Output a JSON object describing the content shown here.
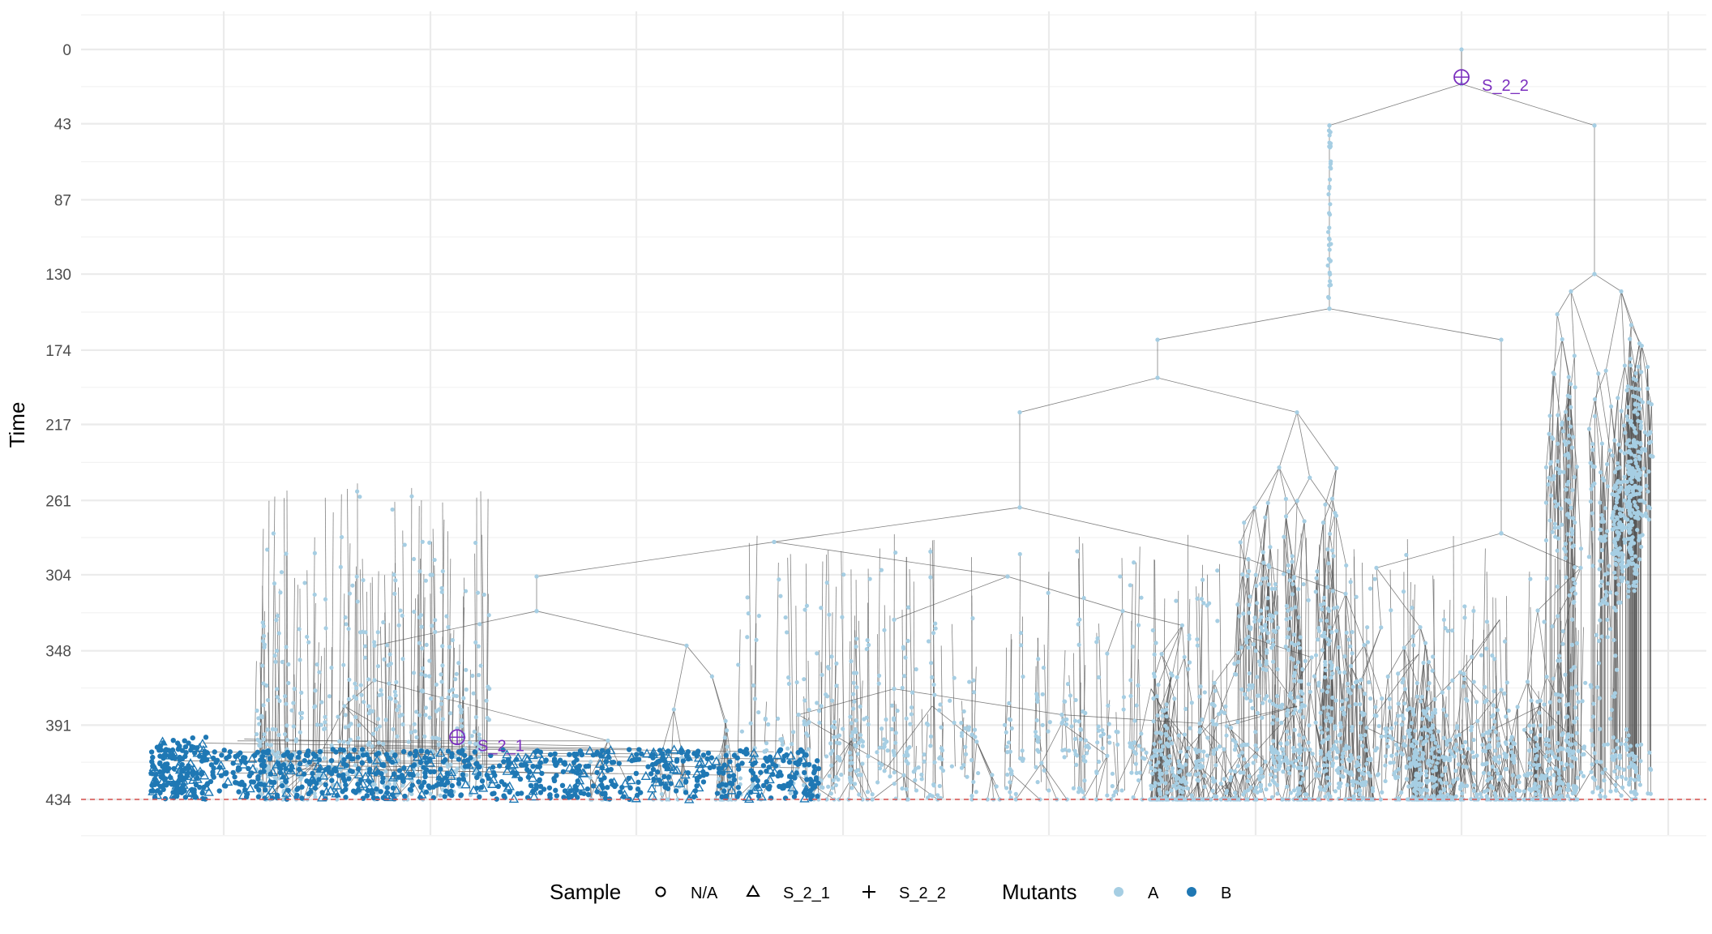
{
  "chart_data": {
    "type": "scatter",
    "subtype": "phylogenetic tree (vertical, time increasing downward)",
    "title": "",
    "xlabel": "",
    "ylabel": "Time",
    "y_reversed": true,
    "ylim": [
      -10,
      450
    ],
    "y_ticks": [
      0,
      43,
      87,
      130,
      174,
      217,
      261,
      304,
      348,
      391,
      434
    ],
    "y_tick_labels": [
      "0",
      "43",
      "87",
      "130",
      "174",
      "217",
      "261",
      "304",
      "348",
      "391",
      "434"
    ],
    "x_tick_labels_shown": false,
    "grid": true,
    "sampling_time": 434,
    "sampling_line_color": "#d9534f",
    "legend": {
      "position": "bottom",
      "sample": {
        "title": "Sample",
        "entries": [
          {
            "label": "N/A",
            "shape": "circle"
          },
          {
            "label": "S_2_1",
            "shape": "triangle"
          },
          {
            "label": "S_2_2",
            "shape": "plus"
          }
        ]
      },
      "mutants": {
        "title": "Mutants",
        "entries": [
          {
            "label": "A",
            "color": "#a6cee3"
          },
          {
            "label": "B",
            "color": "#1f78b4"
          }
        ]
      }
    },
    "sample_markers": [
      {
        "label": "S_2_1",
        "time": 398,
        "color": "#7b2fbe"
      },
      {
        "label": "S_2_2",
        "time": 16,
        "color": "#7b2fbe"
      }
    ],
    "series": [
      {
        "name": "A",
        "color": "#a6cee3",
        "time_range": [
          0,
          434
        ]
      },
      {
        "name": "B",
        "color": "#1f78b4",
        "time_range": [
          398,
          434
        ]
      }
    ],
    "main_branches": [
      {
        "time": 0
      },
      {
        "time": 20
      },
      {
        "time": 78
      },
      {
        "time": 98
      },
      {
        "time": 140
      },
      {
        "time": 160
      },
      {
        "time": 175
      },
      {
        "time": 195
      },
      {
        "time": 210
      },
      {
        "time": 225
      },
      {
        "time": 265
      },
      {
        "time": 285
      },
      {
        "time": 300
      },
      {
        "time": 320
      }
    ]
  }
}
